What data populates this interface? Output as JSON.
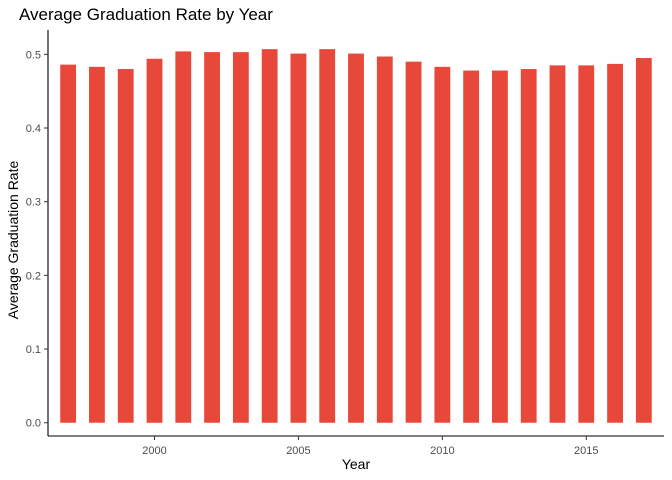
{
  "chart_data": {
    "type": "bar",
    "title": "Average Graduation Rate by Year",
    "xlabel": "Year",
    "ylabel": "Average Graduation Rate",
    "x": [
      1997,
      1998,
      1999,
      2000,
      2001,
      2002,
      2003,
      2004,
      2005,
      2006,
      2007,
      2008,
      2009,
      2010,
      2011,
      2012,
      2013,
      2014,
      2015,
      2016,
      2017
    ],
    "values": [
      0.486,
      0.483,
      0.48,
      0.494,
      0.504,
      0.503,
      0.503,
      0.507,
      0.501,
      0.507,
      0.501,
      0.497,
      0.49,
      0.483,
      0.478,
      0.478,
      0.48,
      0.485,
      0.485,
      0.487,
      0.495
    ],
    "xlim": [
      1996.3,
      2017.7
    ],
    "ylim": [
      -0.018,
      0.533
    ],
    "xticks": [
      2000,
      2005,
      2010,
      2015
    ],
    "yticks": [
      0.0,
      0.1,
      0.2,
      0.3,
      0.4,
      0.5
    ],
    "ytick_labels": [
      "0.0",
      "0.1",
      "0.2",
      "0.3",
      "0.4",
      "0.5"
    ],
    "bar_color": "#E8483A",
    "grid": false,
    "legend": "none"
  }
}
